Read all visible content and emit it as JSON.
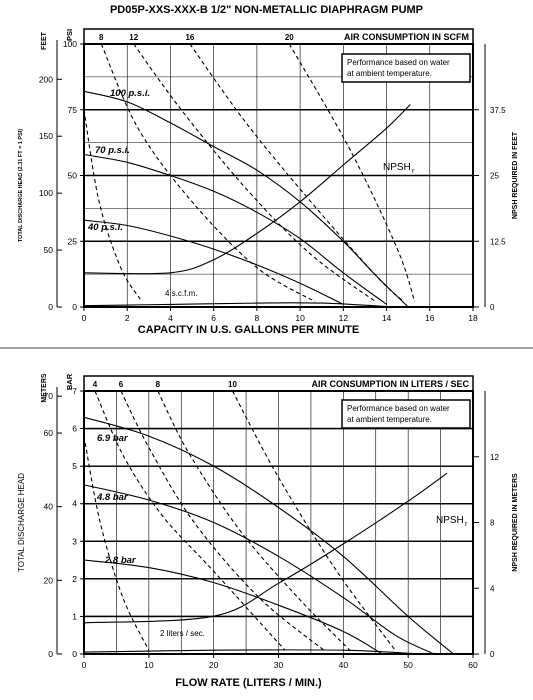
{
  "page_title": "PD05P-XXS-XXX-B  1/2\" NON-METALLIC DIAPHRAGM PUMP",
  "chart_data": [
    {
      "type": "line",
      "title": "PD05P-XXS-XXX-B  1/2\" NON-METALLIC DIAPHRAGM PUMP",
      "xlabel": "CAPACITY IN U.S. GALLONS PER MINUTE",
      "ylabel_left": "FEET",
      "ylabel_left2": "PSI",
      "ylabel_left_small": "TOTAL DISCHARGE HEAD (2.31 FT = 1 PSI)",
      "ylabel_right": "NPSH REQUIRED IN FEET",
      "top_label": "AIR CONSUMPTION IN SCFM",
      "annotation": [
        "Performance based on water",
        "at ambient temperature."
      ],
      "xlim": [
        0,
        18
      ],
      "x_ticks": [
        "0",
        "2",
        "4",
        "6",
        "8",
        "10",
        "12",
        "14",
        "16",
        "18"
      ],
      "ylim_psi": [
        0,
        100
      ],
      "psi_ticks": [
        "0",
        "25",
        "50",
        "75",
        "100"
      ],
      "feet_ticks": [
        "0",
        "50",
        "100",
        "150",
        "200"
      ],
      "npsh_ticks": [
        "0",
        "12.5",
        "25",
        "37.5"
      ],
      "npsh_max": 50,
      "air_ticks": [
        "8",
        "12",
        "16",
        "20"
      ],
      "grid": true,
      "series": [
        {
          "name": "100 p.s.i.",
          "kind": "pressure",
          "x": [
            0,
            2,
            4,
            6,
            8,
            10,
            12,
            13.5,
            15
          ],
          "y": [
            82,
            78,
            70,
            61,
            52,
            40,
            25,
            12,
            0
          ]
        },
        {
          "name": "70 p.s.i.",
          "kind": "pressure",
          "x": [
            0,
            2,
            4,
            6,
            8,
            10,
            12,
            14
          ],
          "y": [
            58,
            55,
            50,
            44,
            36,
            26,
            13,
            1
          ]
        },
        {
          "name": "40 p.s.i.",
          "kind": "pressure",
          "x": [
            0,
            2,
            4,
            6,
            8,
            10,
            12
          ],
          "y": [
            33,
            31,
            27,
            22,
            16,
            9,
            1
          ]
        },
        {
          "name": "",
          "kind": "pressure",
          "x": [
            0,
            4,
            8,
            11,
            14.3
          ],
          "y": [
            0.5,
            1,
            1.5,
            1.5,
            0
          ]
        },
        {
          "name": "NPSHr",
          "kind": "npsh",
          "x": [
            0,
            4,
            6,
            8,
            10,
            12,
            14,
            15.1
          ],
          "y": [
            6.5,
            6.5,
            9,
            14,
            20,
            27,
            34,
            38.5
          ]
        }
      ],
      "air_curves": [
        {
          "name": "4 s.c.f.m.",
          "x": [
            0,
            0.7,
            1.7,
            2.6
          ],
          "y": [
            75,
            40,
            15,
            3
          ]
        },
        {
          "name": "8",
          "x": [
            0.8,
            2.5,
            5,
            8,
            10.7
          ],
          "y": [
            100,
            68,
            40,
            15,
            2
          ]
        },
        {
          "name": "12",
          "x": [
            2.3,
            4.5,
            7.5,
            10.5,
            13.5
          ],
          "y": [
            100,
            75,
            45,
            20,
            2
          ]
        },
        {
          "name": "16",
          "x": [
            4.9,
            7.5,
            10.5,
            13.5,
            14.8
          ],
          "y": [
            100,
            70,
            40,
            12,
            2
          ]
        },
        {
          "name": "20",
          "x": [
            9.5,
            12.3,
            14.5,
            15.3
          ],
          "y": [
            100,
            60,
            22,
            2
          ]
        }
      ],
      "labels": {
        "npsh": "NPSH",
        "npsh_sub": "r",
        "air_min": "4 s.c.f.m."
      }
    },
    {
      "type": "line",
      "xlabel": "FLOW RATE (LITERS / MIN.)",
      "ylabel_left": "METERS",
      "ylabel_left2": "BAR",
      "ylabel_left_small": "TOTAL DISCHARGE HEAD",
      "ylabel_right": "NPSH REQUIRED IN METERS",
      "top_label": "AIR CONSUMPTION IN LITERS / SEC",
      "annotation": [
        "Performance based on water",
        "at ambient temperature."
      ],
      "xlim": [
        0,
        60
      ],
      "x_ticks": [
        "0",
        "10",
        "20",
        "30",
        "40",
        "50",
        "60"
      ],
      "ylim_bar": [
        0,
        7
      ],
      "bar_ticks": [
        "0",
        "1",
        "2",
        "3",
        "4",
        "5",
        "6",
        "7"
      ],
      "meter_ticks": [
        "0",
        "20",
        "40",
        "60",
        "70"
      ],
      "npsh_ticks": [
        "0",
        "4",
        "8",
        "12"
      ],
      "npsh_max": 16,
      "air_ticks": [
        "4",
        "6",
        "8",
        "10"
      ],
      "grid": true,
      "series": [
        {
          "name": "6.9 bar",
          "kind": "pressure",
          "x": [
            0,
            10,
            20,
            30,
            40,
            50,
            57
          ],
          "y": [
            6.3,
            5.8,
            5.0,
            3.9,
            2.6,
            1.0,
            0
          ]
        },
        {
          "name": "4.8 bar",
          "kind": "pressure",
          "x": [
            0,
            10,
            20,
            30,
            40,
            48,
            54
          ],
          "y": [
            4.5,
            4.1,
            3.5,
            2.6,
            1.5,
            0.5,
            0
          ]
        },
        {
          "name": "2.8 bar",
          "kind": "pressure",
          "x": [
            0,
            10,
            20,
            30,
            40,
            46
          ],
          "y": [
            2.5,
            2.3,
            1.9,
            1.3,
            0.6,
            0
          ]
        },
        {
          "name": "",
          "kind": "pressure",
          "x": [
            0,
            20,
            40,
            52
          ],
          "y": [
            0.05,
            0.1,
            0.1,
            0
          ]
        },
        {
          "name": "NPSHr",
          "kind": "npsh",
          "x": [
            0,
            20,
            30,
            40,
            50,
            56
          ],
          "y": [
            1.9,
            2.3,
            4.3,
            6.7,
            9.3,
            11
          ]
        }
      ],
      "air_curves": [
        {
          "name": "2 liters / sec.",
          "x": [
            0,
            2.5,
            6,
            10
          ],
          "y": [
            5.8,
            3.5,
            1.5,
            0.1
          ]
        },
        {
          "name": "4",
          "x": [
            1.7,
            6,
            12,
            20,
            31
          ],
          "y": [
            7,
            5.3,
            3.7,
            2.2,
            0.1
          ]
        },
        {
          "name": "6",
          "x": [
            5.7,
            10,
            17,
            27,
            37
          ],
          "y": [
            7,
            5.5,
            3.5,
            1.5,
            0.1
          ]
        },
        {
          "name": "8",
          "x": [
            11.4,
            16,
            24,
            33,
            41
          ],
          "y": [
            7,
            5.4,
            3.3,
            1.5,
            0.1
          ]
        },
        {
          "name": "10",
          "x": [
            22.9,
            30,
            39,
            48
          ],
          "y": [
            7,
            4.7,
            2.2,
            0.1
          ]
        }
      ],
      "labels": {
        "npsh": "NPSH",
        "npsh_sub": "r",
        "air_min": "2 liters / sec."
      }
    }
  ]
}
